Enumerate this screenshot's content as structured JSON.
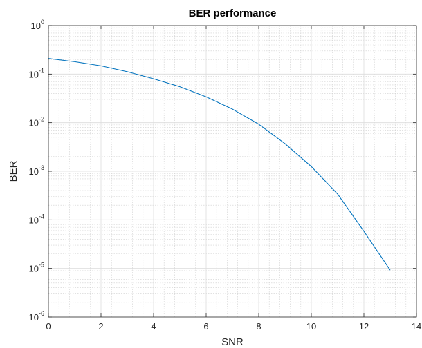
{
  "chart_data": {
    "type": "line",
    "title": "BER performance",
    "xlabel": "SNR",
    "ylabel": "BER",
    "xlim": [
      0,
      14
    ],
    "ylim": [
      1e-06,
      1
    ],
    "yscale": "log",
    "grid": true,
    "minor_grid": true,
    "x_ticks": [
      "0",
      "2",
      "4",
      "6",
      "8",
      "10",
      "12",
      "14"
    ],
    "y_ticks": [
      {
        "base": "10",
        "exp": "-6"
      },
      {
        "base": "10",
        "exp": "-5"
      },
      {
        "base": "10",
        "exp": "-4"
      },
      {
        "base": "10",
        "exp": "-3"
      },
      {
        "base": "10",
        "exp": "-2"
      },
      {
        "base": "10",
        "exp": "-1"
      },
      {
        "base": "10",
        "exp": "0"
      }
    ],
    "series": [
      {
        "color": "#0072BD",
        "x": [
          0,
          1,
          2,
          3,
          4,
          5,
          6,
          7,
          8,
          9,
          10,
          11,
          12,
          13
        ],
        "y": [
          0.21,
          0.18,
          0.148,
          0.112,
          0.08,
          0.055,
          0.034,
          0.019,
          0.0093,
          0.0037,
          0.00125,
          0.00034,
          5.8e-05,
          9.2e-06
        ]
      }
    ]
  }
}
